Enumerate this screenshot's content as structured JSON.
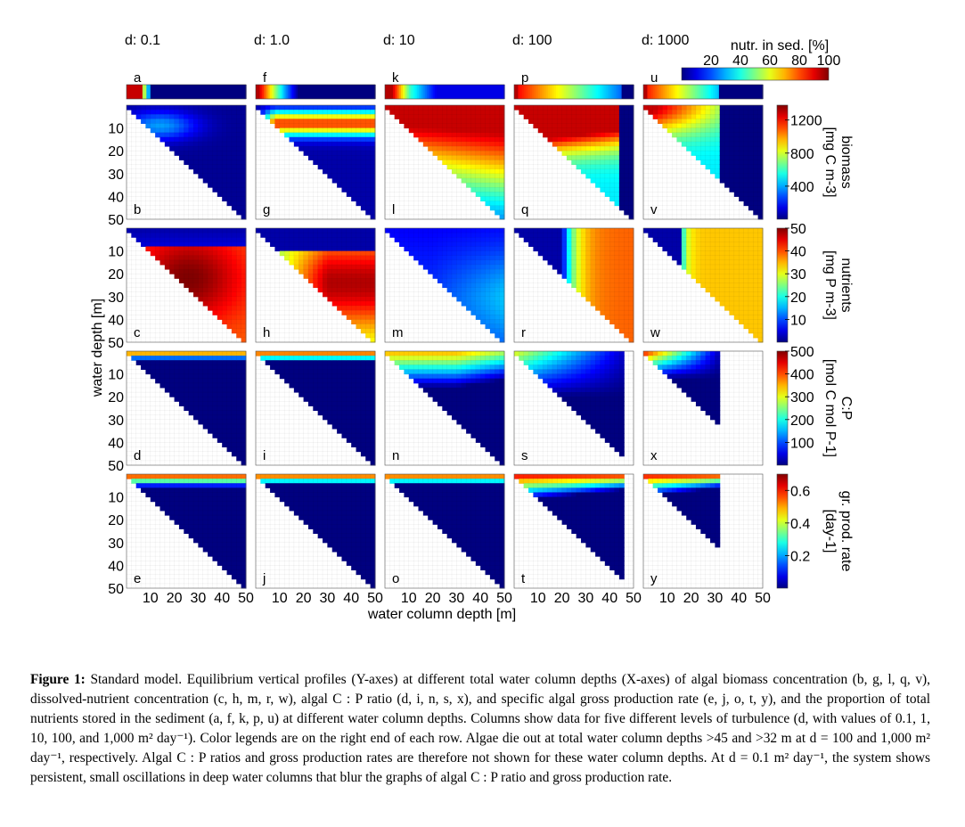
{
  "chart_data": {
    "type": "heatmap",
    "columns": [
      "d: 0.1",
      "d: 1.0",
      "d: 10",
      "d: 100",
      "d: 1000"
    ],
    "xlabel": "water column depth [m]",
    "ylabel": "water depth [m]",
    "x_ticks": [
      10,
      20,
      30,
      40,
      50
    ],
    "y_ticks": [
      10,
      20,
      30,
      40,
      50
    ],
    "xlim": [
      0,
      50
    ],
    "ylim": [
      0,
      50
    ],
    "colormap": "jet",
    "sediment_strip": {
      "label": "nutr. in sed. [%]",
      "colorbar_ticks": [
        20,
        40,
        60,
        80,
        100
      ],
      "panel_letters": [
        "a",
        "f",
        "k",
        "p",
        "u"
      ]
    },
    "rows": [
      {
        "key": "biomass",
        "label": "biomass",
        "unit": "[mg C m-3]",
        "colorbar_ticks": [
          400,
          800,
          1200
        ],
        "panel_letters": [
          "b",
          "g",
          "l",
          "q",
          "v"
        ]
      },
      {
        "key": "nutrients",
        "label": "nutrients",
        "unit": "[mg P m-3]",
        "colorbar_ticks": [
          10,
          20,
          30,
          40,
          50
        ],
        "panel_letters": [
          "c",
          "h",
          "m",
          "r",
          "w"
        ]
      },
      {
        "key": "cp",
        "label": "C:P",
        "unit": "[mol C mol P-1]",
        "colorbar_ticks": [
          100,
          200,
          300,
          400,
          500
        ],
        "panel_letters": [
          "d",
          "i",
          "n",
          "s",
          "x"
        ]
      },
      {
        "key": "gpr",
        "label": "gr. prod. rate",
        "unit": "[day-1]",
        "colorbar_ticks": [
          0.2,
          0.4,
          0.6
        ],
        "panel_letters": [
          "e",
          "j",
          "o",
          "t",
          "y"
        ]
      }
    ],
    "algae_die_out_above_m": [
      null,
      null,
      null,
      45,
      32
    ]
  },
  "caption": {
    "label": "Figure 1:",
    "text": " Standard model. Equilibrium vertical profiles (Y-axes) at different total water column depths (X-axes) of algal biomass concentration (b, g, l, q, v), dissolved-nutrient concentration (c, h, m, r, w), algal C : P ratio (d, i, n, s, x), and specific algal gross production rate (e, j, o, t, y), and the proportion of total nutrients stored in the sediment (a, f, k, p, u) at different water column depths. Columns show data for five different levels of turbulence (d, with values of 0.1, 1, 10, 100, and 1,000 m² day⁻¹). Color legends are on the right end of each row. Algae die out at total water column depths >45 and >32 m at d = 100 and 1,000 m² day⁻¹, respectively. Algal C : P ratios and gross production rates are therefore not shown for these water column depths. At d = 0.1 m² day⁻¹, the system shows persistent, small oscillations in deep water columns that blur the graphs of algal C : P ratio and gross production rate."
  }
}
